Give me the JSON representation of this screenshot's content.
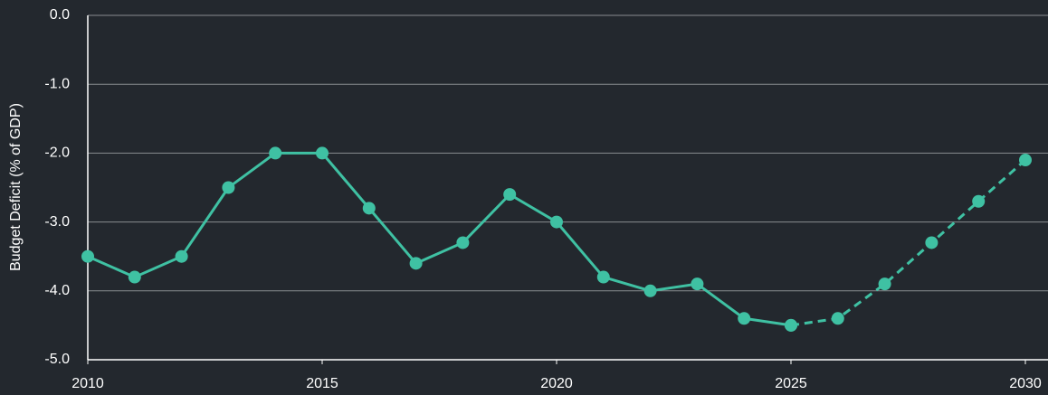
{
  "chart_data": {
    "type": "line",
    "ylabel": "Budget Deficit (% of GDP)",
    "x": [
      2010,
      2011,
      2012,
      2013,
      2014,
      2015,
      2016,
      2017,
      2018,
      2019,
      2020,
      2021,
      2022,
      2023,
      2024,
      2025,
      2026,
      2027,
      2028,
      2029,
      2030
    ],
    "series": [
      {
        "color": "#3fc1a3",
        "dash": false,
        "values": [
          -3.5,
          -3.8,
          -3.5,
          -2.5,
          -2.0,
          -2.0,
          -2.8,
          -3.6,
          -3.3,
          -2.6,
          -3.0,
          -3.8,
          -4.0,
          -3.9,
          -4.4,
          -4.5,
          null,
          null,
          null,
          null,
          null
        ]
      },
      {
        "color": "#3fc1a3",
        "dash": true,
        "values": [
          null,
          null,
          null,
          null,
          null,
          null,
          null,
          null,
          null,
          null,
          null,
          null,
          null,
          null,
          null,
          -4.5,
          -4.4,
          -3.9,
          -3.3,
          -2.7,
          -2.1
        ]
      }
    ],
    "xlim": [
      2010,
      2030
    ],
    "xticks": [
      2010,
      2015,
      2020,
      2025,
      2030
    ],
    "ylim": [
      -5,
      0
    ],
    "yticks": [
      {
        "value": 0,
        "label": "0.0"
      },
      {
        "value": -1,
        "label": "-1.0"
      },
      {
        "value": -2,
        "label": "-2.0"
      },
      {
        "value": -3,
        "label": "-3.0"
      },
      {
        "value": -4,
        "label": "-4.0"
      },
      {
        "value": -5,
        "label": "-5.0"
      }
    ],
    "grid": true
  }
}
